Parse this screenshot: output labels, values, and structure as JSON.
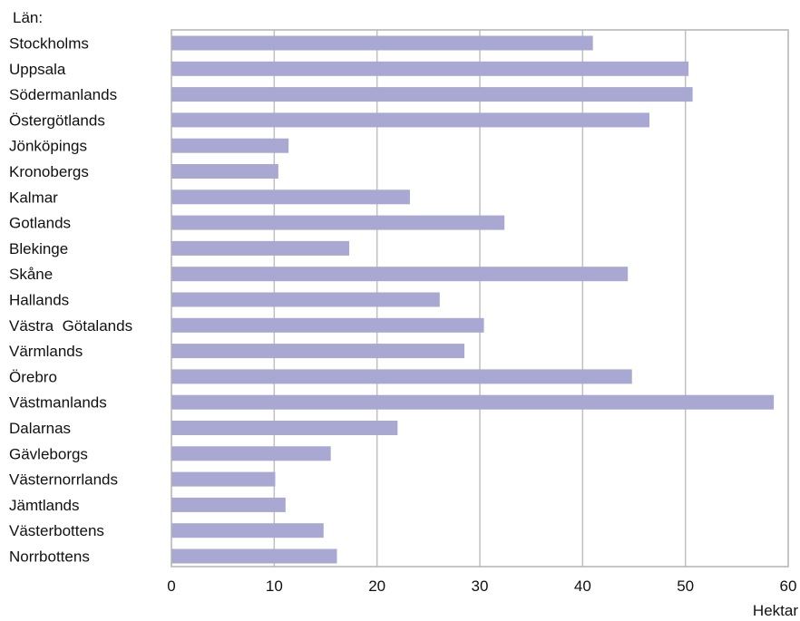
{
  "chart_data": {
    "type": "bar",
    "orientation": "horizontal",
    "ylabel": "Län:",
    "xlabel": "Hektar",
    "categories": [
      "Stockholms",
      "Uppsala",
      "Södermanlands",
      "Östergötlands",
      "Jönköpings",
      "Kronobergs",
      "Kalmar",
      "Gotlands",
      "Blekinge",
      "Skåne",
      "Hallands",
      "Västra  Götalands",
      "Värmlands",
      "Örebro",
      "Västmanlands",
      "Dalarnas",
      "Gävleborgs",
      "Västernorrlands",
      "Jämtlands",
      "Västerbottens",
      "Norrbottens"
    ],
    "values": [
      41,
      50.3,
      50.7,
      46.5,
      11.4,
      10.4,
      23.2,
      32.4,
      17.3,
      44.4,
      26.1,
      30.4,
      28.5,
      44.8,
      58.6,
      22.0,
      15.5,
      10.1,
      11.1,
      14.8,
      16.1
    ],
    "xlim": [
      0,
      60
    ],
    "xticks": [
      0,
      10,
      20,
      30,
      40,
      50,
      60
    ],
    "grid": "vertical",
    "colors": {
      "bar": "#a8a8d2",
      "grid": "#c0c0c0",
      "frame": "#b4b4b4"
    }
  }
}
